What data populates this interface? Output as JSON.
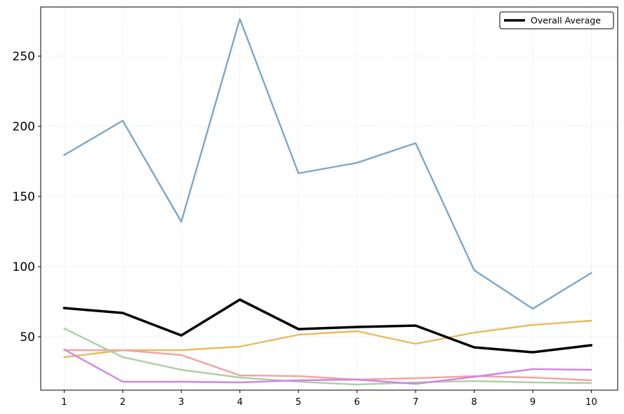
{
  "chart_data": {
    "type": "line",
    "title": "",
    "xlabel": "",
    "ylabel": "",
    "x": [
      1,
      2,
      3,
      4,
      5,
      6,
      7,
      8,
      9,
      10
    ],
    "xticks": [
      "1",
      "2",
      "3",
      "4",
      "5",
      "6",
      "7",
      "8",
      "9",
      "10"
    ],
    "yticks": [
      "50",
      "100",
      "150",
      "200",
      "250"
    ],
    "xlim": [
      0.6,
      10.45
    ],
    "ylim": [
      12,
      285
    ],
    "grid": "dotted",
    "legend_placement": "top-right",
    "series": [
      {
        "color": "#7ba7cb",
        "values": [
          179.5,
          204,
          132,
          276.5,
          166.5,
          174,
          188,
          97.5,
          70,
          95.5
        ]
      },
      {
        "color": "#e8bb5d",
        "values": [
          35.5,
          40.5,
          40.5,
          43,
          51.5,
          54,
          45,
          53,
          58.5,
          61.5
        ]
      },
      {
        "color": "#f4a3a0",
        "values": [
          40.5,
          40.5,
          37,
          22.5,
          22,
          19.5,
          20.5,
          22,
          21,
          19
        ]
      },
      {
        "color": "#acd0a5",
        "values": [
          56,
          35.5,
          26.5,
          21,
          18,
          16,
          17.5,
          18.5,
          17.5,
          17
        ]
      },
      {
        "color": "#cf85e6",
        "values": [
          41,
          18,
          18,
          17.5,
          19,
          19.5,
          16.5,
          21.5,
          27,
          26.5
        ]
      },
      {
        "name": "Overall Average",
        "color": "#000000",
        "values": [
          70.5,
          67,
          51,
          76.5,
          55.5,
          57,
          58,
          42.5,
          39,
          44
        ]
      }
    ]
  }
}
